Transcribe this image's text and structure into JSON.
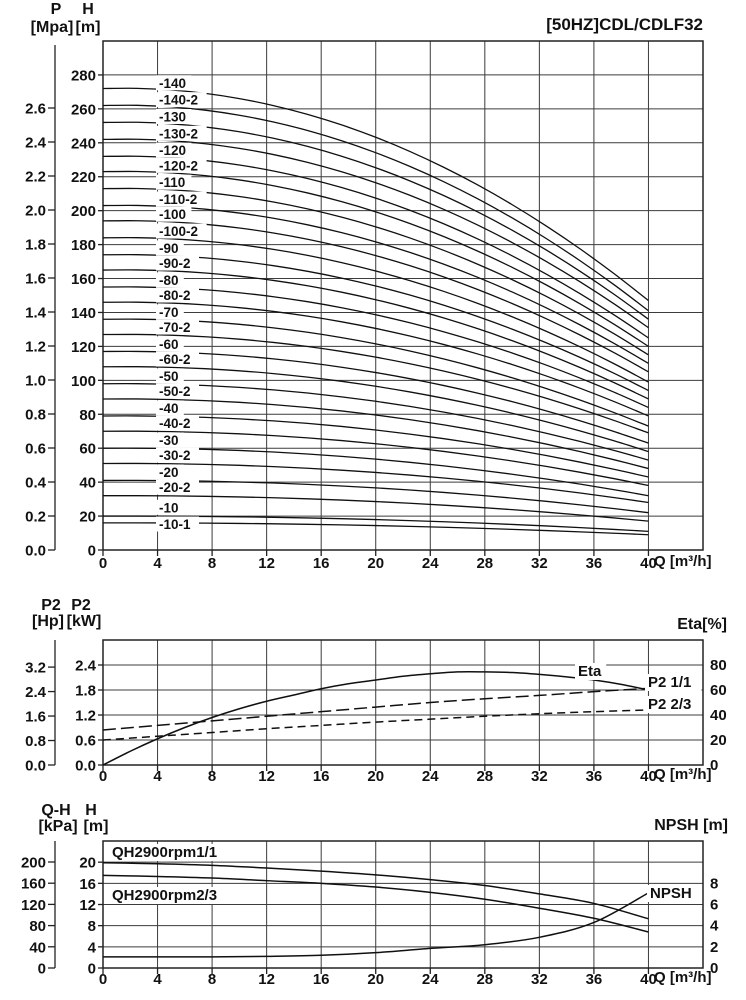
{
  "title": "[50HZ]CDL/CDLF32",
  "chart_data": [
    {
      "id": "head",
      "type": "line",
      "title": "[50HZ]CDL/CDLF32",
      "x": {
        "label": "Q [m³/h]",
        "ticks": [
          "0",
          "4",
          "8",
          "12",
          "16",
          "20",
          "24",
          "28",
          "32",
          "36",
          "40"
        ],
        "range": [
          0,
          44
        ],
        "grid_step": 4
      },
      "y": {
        "label": "H",
        "unit": "[m]",
        "ticks": [
          "0",
          "20",
          "40",
          "60",
          "80",
          "100",
          "120",
          "140",
          "160",
          "180",
          "200",
          "220",
          "240",
          "260",
          "280"
        ],
        "range": [
          0,
          300
        ],
        "grid_step": 20
      },
      "y2": {
        "label": "P",
        "unit": "[Mpa]",
        "ticks": [
          "0.0",
          "0.2",
          "0.4",
          "0.6",
          "0.8",
          "1.0",
          "1.2",
          "1.4",
          "1.6",
          "1.8",
          "2.0",
          "2.2",
          "2.4",
          "2.6"
        ]
      },
      "curves": [
        {
          "label": "-140",
          "h0": 272,
          "h40": 147
        },
        {
          "label": "-140-2",
          "h0": 262,
          "h40": 141
        },
        {
          "label": "-130",
          "h0": 252,
          "h40": 136
        },
        {
          "label": "-130-2",
          "h0": 242,
          "h40": 131
        },
        {
          "label": "-120",
          "h0": 232,
          "h40": 125
        },
        {
          "label": "-120-2",
          "h0": 223,
          "h40": 120
        },
        {
          "label": "-110",
          "h0": 213,
          "h40": 115
        },
        {
          "label": "-110-2",
          "h0": 203,
          "h40": 110
        },
        {
          "label": "-100",
          "h0": 194,
          "h40": 105
        },
        {
          "label": "-100-2",
          "h0": 184,
          "h40": 99
        },
        {
          "label": "-90",
          "h0": 174,
          "h40": 94
        },
        {
          "label": "-90-2",
          "h0": 165,
          "h40": 89
        },
        {
          "label": "-80",
          "h0": 155,
          "h40": 84
        },
        {
          "label": "-80-2",
          "h0": 146,
          "h40": 79
        },
        {
          "label": "-70",
          "h0": 136,
          "h40": 73
        },
        {
          "label": "-70-2",
          "h0": 127,
          "h40": 69
        },
        {
          "label": "-60",
          "h0": 117,
          "h40": 63
        },
        {
          "label": "-60-2",
          "h0": 108,
          "h40": 58
        },
        {
          "label": "-50",
          "h0": 98,
          "h40": 53
        },
        {
          "label": "-50-2",
          "h0": 89,
          "h40": 48
        },
        {
          "label": "-40",
          "h0": 79,
          "h40": 43
        },
        {
          "label": "-40-2",
          "h0": 70,
          "h40": 38
        },
        {
          "label": "-30",
          "h0": 60,
          "h40": 32
        },
        {
          "label": "-30-2",
          "h0": 51,
          "h40": 28
        },
        {
          "label": "-20",
          "h0": 41,
          "h40": 22
        },
        {
          "label": "-20-2",
          "h0": 32,
          "h40": 17
        },
        {
          "label": "-10",
          "h0": 20,
          "h40": 11
        },
        {
          "label": "-10-1",
          "h0": 16,
          "h40": 9,
          "dy": 1
        }
      ]
    },
    {
      "id": "power",
      "type": "line",
      "x": {
        "label": "Q [m³/h]",
        "ticks": [
          "0",
          "4",
          "8",
          "12",
          "16",
          "20",
          "24",
          "28",
          "32",
          "36",
          "40"
        ],
        "range": [
          0,
          44
        ],
        "grid_step": 4
      },
      "y": {
        "label": "P2",
        "unit": "[kW]",
        "ticks": [
          "0.0",
          "0.6",
          "1.2",
          "1.8",
          "2.4"
        ],
        "range": [
          0,
          3
        ],
        "grid_step": 0.6
      },
      "y2": {
        "label": "P2",
        "unit": "[Hp]",
        "ticks": [
          "0.0",
          "0.8",
          "1.6",
          "2.4",
          "3.2"
        ]
      },
      "right": {
        "label": "Eta[%]",
        "ticks": [
          "80",
          "60",
          "40",
          "20",
          "0"
        ]
      },
      "series": [
        {
          "name": "Eta",
          "style": "solid",
          "scale": 0.03,
          "points": [
            [
              0,
              0
            ],
            [
              2,
              11
            ],
            [
              4,
              21
            ],
            [
              6,
              30
            ],
            [
              8,
              38
            ],
            [
              10,
              45
            ],
            [
              12,
              51
            ],
            [
              14,
              56
            ],
            [
              16,
              61
            ],
            [
              18,
              65
            ],
            [
              20,
              68
            ],
            [
              22,
              71
            ],
            [
              24,
              73
            ],
            [
              26,
              74.5
            ],
            [
              28,
              74.5
            ],
            [
              30,
              74
            ],
            [
              32,
              72.5
            ],
            [
              34,
              70.5
            ],
            [
              36,
              68
            ],
            [
              38,
              64.5
            ],
            [
              40,
              60
            ]
          ]
        },
        {
          "name": "P2 1/1",
          "style": "dash-long",
          "scale": 1,
          "points": [
            [
              0,
              0.84
            ],
            [
              4,
              0.95
            ],
            [
              8,
              1.06
            ],
            [
              12,
              1.17
            ],
            [
              16,
              1.28
            ],
            [
              20,
              1.39
            ],
            [
              24,
              1.5
            ],
            [
              28,
              1.59
            ],
            [
              32,
              1.67
            ],
            [
              36,
              1.76
            ],
            [
              40,
              1.84
            ]
          ]
        },
        {
          "name": "P2 2/3",
          "style": "dash",
          "scale": 1,
          "points": [
            [
              0,
              0.6
            ],
            [
              4,
              0.69
            ],
            [
              8,
              0.78
            ],
            [
              12,
              0.87
            ],
            [
              16,
              0.95
            ],
            [
              20,
              1.03
            ],
            [
              24,
              1.1
            ],
            [
              28,
              1.17
            ],
            [
              32,
              1.23
            ],
            [
              36,
              1.28
            ],
            [
              40,
              1.32
            ]
          ]
        }
      ],
      "labels": [
        {
          "text": "Eta",
          "x": 578,
          "y": 676,
          "box": true
        },
        {
          "text": "P2 1/1",
          "x": 648,
          "y": 687,
          "box": true
        },
        {
          "text": "P2 2/3",
          "x": 648,
          "y": 709,
          "box": true
        }
      ]
    },
    {
      "id": "qh",
      "type": "line",
      "x": {
        "label": "Q [m³/h]",
        "ticks": [
          "0",
          "4",
          "8",
          "12",
          "16",
          "20",
          "24",
          "28",
          "32",
          "36",
          "40"
        ],
        "range": [
          0,
          44
        ],
        "grid_step": 4
      },
      "y": {
        "label": "H",
        "unit": "[m]",
        "ticks": [
          "0",
          "4",
          "8",
          "12",
          "16",
          "20"
        ],
        "range": [
          0,
          24
        ],
        "grid_step": 4
      },
      "y2": {
        "label": "Q-H",
        "unit": "[kPa]",
        "ticks": [
          "0",
          "40",
          "80",
          "120",
          "160",
          "200"
        ]
      },
      "right": {
        "label": "NPSH [m]",
        "ticks": [
          "8",
          "6",
          "4",
          "2",
          "0"
        ]
      },
      "series": [
        {
          "name": "QH2900rpm1/1",
          "style": "solid",
          "scale": 1,
          "points": [
            [
              0,
              19.9
            ],
            [
              4,
              19.7
            ],
            [
              8,
              19.4
            ],
            [
              12,
              18.9
            ],
            [
              16,
              18.3
            ],
            [
              20,
              17.6
            ],
            [
              24,
              16.7
            ],
            [
              28,
              15.6
            ],
            [
              32,
              14.0
            ],
            [
              36,
              12.2
            ],
            [
              40,
              9.3
            ]
          ]
        },
        {
          "name": "QH2900rpm2/3",
          "style": "solid",
          "scale": 1,
          "points": [
            [
              0,
              17.5
            ],
            [
              4,
              17.3
            ],
            [
              8,
              17.0
            ],
            [
              12,
              16.5
            ],
            [
              16,
              16.0
            ],
            [
              20,
              15.3
            ],
            [
              24,
              14.3
            ],
            [
              28,
              13.0
            ],
            [
              32,
              11.3
            ],
            [
              36,
              9.4
            ],
            [
              40,
              6.8
            ]
          ]
        },
        {
          "name": "NPSH",
          "style": "solid",
          "scale": 2,
          "points": [
            [
              0,
              1.05
            ],
            [
              4,
              1.05
            ],
            [
              8,
              1.05
            ],
            [
              12,
              1.1
            ],
            [
              16,
              1.2
            ],
            [
              20,
              1.45
            ],
            [
              24,
              1.85
            ],
            [
              28,
              2.2
            ],
            [
              32,
              2.9
            ],
            [
              36,
              4.3
            ],
            [
              40,
              7.1
            ]
          ]
        }
      ],
      "labels": [
        {
          "text": "QH2900rpm1/1",
          "x": 112,
          "y": 857,
          "box": true
        },
        {
          "text": "QH2900rpm2/3",
          "x": 112,
          "y": 900,
          "box": true
        },
        {
          "text": "NPSH",
          "x": 650,
          "y": 898,
          "box": true
        }
      ]
    }
  ]
}
